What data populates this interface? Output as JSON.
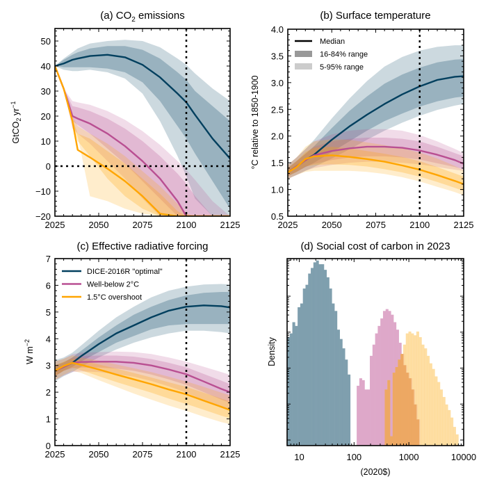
{
  "colors": {
    "dice": "#013f5e",
    "wb2": "#b94f92",
    "os15": "#ffa500",
    "dice_hist": "#7f9fae",
    "wb2_hist": "#dea8c9",
    "os15_hist": "#fdd17f",
    "overlap_hist": "#eda863"
  },
  "chart_data": [
    {
      "id": "a",
      "type": "line",
      "title": "(a) CO",
      "title_sub": "2",
      "title_suffix": " emissions",
      "xlabel": "",
      "ylabel": "GtCO",
      "ylabel_sub": "2",
      "ylabel_suffix": " yr",
      "ylabel_sup": "−1",
      "xlim": [
        2025,
        2125
      ],
      "ylim": [
        -20,
        55
      ],
      "xticks": [
        2025,
        2050,
        2075,
        2100,
        2125
      ],
      "yticks": [
        -20,
        -10,
        0,
        10,
        20,
        30,
        40,
        50
      ],
      "ytick_labels": [
        "−20",
        "−10",
        "0",
        "10",
        "20",
        "30",
        "40",
        "50"
      ],
      "vline": 2100,
      "hline": 0,
      "x": [
        2025,
        2030,
        2035,
        2038,
        2045,
        2055,
        2065,
        2075,
        2085,
        2095,
        2100,
        2105,
        2115,
        2125
      ],
      "series": [
        {
          "name": "DICE-2016R \"optimal\"",
          "key": "dice",
          "median": [
            40,
            41,
            42.5,
            43,
            44,
            44.5,
            43.5,
            40.5,
            35.5,
            29,
            25.5,
            20.5,
            11,
            3
          ],
          "p16": [
            40,
            39.5,
            39.5,
            39.5,
            39.5,
            39,
            37.5,
            33.5,
            26,
            16,
            11,
            5,
            -6,
            -17
          ],
          "p84": [
            40,
            42.5,
            44.5,
            45.5,
            47,
            48,
            48,
            46.5,
            43,
            37.5,
            34.5,
            30,
            24,
            18
          ],
          "p5": [
            40,
            38.5,
            38,
            38,
            38.5,
            37.5,
            35,
            29,
            18,
            4,
            -4,
            -13,
            -20,
            -20
          ],
          "p95": [
            40,
            43,
            45.5,
            47,
            49,
            50,
            50.5,
            50,
            47.5,
            43,
            40.5,
            37,
            31,
            26
          ]
        },
        {
          "name": "Well-below 2°C",
          "key": "wb2",
          "median": [
            40,
            31,
            20,
            19,
            17,
            13,
            8,
            2,
            -5,
            -14,
            -20,
            -20,
            -20,
            -20
          ],
          "p16": [
            40,
            31,
            18,
            16.5,
            13,
            7,
            1,
            -6,
            -13,
            -20,
            -20,
            -20,
            -20,
            -20
          ],
          "p84": [
            40,
            31,
            24,
            23.5,
            22,
            19,
            15,
            10,
            4,
            -3,
            -7,
            -12,
            -20,
            -20
          ],
          "p5": [
            40,
            31,
            15,
            13,
            9,
            2,
            -5,
            -13,
            -20,
            -20,
            -20,
            -20,
            -20,
            -20
          ],
          "p95": [
            40,
            31,
            26,
            25.5,
            24.5,
            22,
            18.5,
            14,
            8.5,
            2,
            -1.5,
            -5.5,
            -14,
            -20
          ]
        },
        {
          "name": "1.5°C overshoot",
          "key": "os15",
          "median": [
            40,
            31,
            18,
            6.5,
            3.5,
            -1,
            -6,
            -12,
            -19,
            -20,
            -20,
            -20,
            -20,
            -20
          ],
          "p16": [
            40,
            31,
            17,
            10,
            4,
            -5,
            -12,
            -17,
            -20,
            -20,
            -20,
            -20,
            -20,
            -20
          ],
          "p84": [
            40,
            31,
            19,
            13,
            11,
            6,
            1,
            -5,
            -11,
            -18,
            -20,
            -20,
            -20,
            -20
          ],
          "p5": [
            40,
            31,
            17,
            12,
            -12,
            -14,
            -17,
            -19,
            -20,
            -20,
            -20,
            -20,
            -20,
            -20
          ],
          "p95": [
            40,
            31,
            20,
            16,
            13,
            9,
            4,
            -2,
            -8,
            -15,
            -19,
            -20,
            -20,
            -20
          ]
        }
      ]
    },
    {
      "id": "b",
      "type": "line",
      "title": "(b) Surface temperature",
      "ylabel": "°C relative to 1850-1900",
      "xlim": [
        2025,
        2125
      ],
      "ylim": [
        0.5,
        4.0
      ],
      "xticks": [
        2025,
        2050,
        2075,
        2100,
        2125
      ],
      "yticks": [
        0.5,
        1.0,
        1.5,
        2.0,
        2.5,
        3.0,
        3.5,
        4.0
      ],
      "ytick_labels": [
        "0.5",
        "1.0",
        "1.5",
        "2.0",
        "2.5",
        "3.0",
        "3.5",
        "4.0"
      ],
      "vline": 2100,
      "legend": {
        "position": "top-left",
        "items": [
          "Median",
          "16-84% range",
          "5-95% range"
        ]
      },
      "x": [
        2025,
        2030,
        2035,
        2040,
        2050,
        2060,
        2070,
        2080,
        2090,
        2100,
        2110,
        2120,
        2125
      ],
      "series": [
        {
          "key": "dice",
          "median": [
            1.32,
            1.43,
            1.55,
            1.65,
            1.93,
            2.18,
            2.4,
            2.6,
            2.78,
            2.93,
            3.05,
            3.11,
            3.12
          ],
          "p16": [
            1.25,
            1.33,
            1.42,
            1.5,
            1.7,
            1.9,
            2.1,
            2.28,
            2.42,
            2.55,
            2.65,
            2.72,
            2.74
          ],
          "p84": [
            1.4,
            1.53,
            1.67,
            1.81,
            2.15,
            2.47,
            2.74,
            2.98,
            3.15,
            3.28,
            3.38,
            3.43,
            3.44
          ],
          "p5": [
            1.2,
            1.27,
            1.35,
            1.42,
            1.58,
            1.75,
            1.93,
            2.1,
            2.25,
            2.38,
            2.49,
            2.57,
            2.6
          ],
          "p95": [
            1.46,
            1.6,
            1.76,
            1.93,
            2.33,
            2.7,
            3.03,
            3.3,
            3.48,
            3.6,
            3.67,
            3.7,
            3.7
          ]
        },
        {
          "key": "wb2",
          "median": [
            1.32,
            1.43,
            1.55,
            1.64,
            1.72,
            1.77,
            1.8,
            1.8,
            1.78,
            1.73,
            1.65,
            1.55,
            1.48
          ],
          "p16": [
            1.25,
            1.33,
            1.42,
            1.48,
            1.55,
            1.6,
            1.62,
            1.62,
            1.6,
            1.56,
            1.49,
            1.42,
            1.38
          ],
          "p84": [
            1.4,
            1.53,
            1.66,
            1.8,
            1.9,
            1.95,
            1.97,
            1.97,
            1.95,
            1.9,
            1.8,
            1.68,
            1.62
          ],
          "p5": [
            1.2,
            1.27,
            1.35,
            1.4,
            1.46,
            1.5,
            1.52,
            1.52,
            1.5,
            1.47,
            1.42,
            1.37,
            1.35
          ],
          "p95": [
            1.46,
            1.6,
            1.75,
            1.9,
            2.03,
            2.1,
            2.13,
            2.13,
            2.1,
            2.02,
            1.9,
            1.76,
            1.68
          ]
        },
        {
          "key": "os15",
          "median": [
            1.32,
            1.42,
            1.57,
            1.62,
            1.64,
            1.61,
            1.57,
            1.52,
            1.45,
            1.37,
            1.27,
            1.16,
            1.1
          ],
          "p16": [
            1.25,
            1.33,
            1.43,
            1.46,
            1.47,
            1.46,
            1.43,
            1.38,
            1.32,
            1.24,
            1.14,
            1.03,
            0.97
          ],
          "p84": [
            1.4,
            1.53,
            1.7,
            1.78,
            1.8,
            1.77,
            1.72,
            1.67,
            1.61,
            1.53,
            1.42,
            1.3,
            1.24
          ],
          "p5": [
            1.2,
            1.27,
            1.33,
            1.35,
            1.35,
            1.35,
            1.33,
            1.29,
            1.23,
            1.15,
            1.05,
            0.95,
            0.89
          ],
          "p95": [
            1.46,
            1.6,
            1.8,
            1.9,
            1.94,
            1.93,
            1.88,
            1.83,
            1.77,
            1.69,
            1.58,
            1.44,
            1.36
          ]
        }
      ]
    },
    {
      "id": "c",
      "type": "line",
      "title": "(c) Effective radiative forcing",
      "ylabel": "W m",
      "ylabel_sup": "−2",
      "xlim": [
        2025,
        2125
      ],
      "ylim": [
        0,
        7
      ],
      "xticks": [
        2025,
        2050,
        2075,
        2100,
        2125
      ],
      "yticks": [
        0,
        1,
        2,
        3,
        4,
        5,
        6,
        7
      ],
      "ytick_labels": [
        "0",
        "1",
        "2",
        "3",
        "4",
        "5",
        "6",
        "7"
      ],
      "vline": 2100,
      "legend": {
        "position": "top-left",
        "items": [
          "DICE-2016R \"optimal\"",
          "Well-below 2°C",
          "1.5°C overshoot"
        ]
      },
      "x": [
        2025,
        2030,
        2035,
        2040,
        2050,
        2060,
        2070,
        2080,
        2090,
        2100,
        2110,
        2120,
        2125
      ],
      "series": [
        {
          "key": "dice",
          "median": [
            2.8,
            2.95,
            3.1,
            3.35,
            3.8,
            4.2,
            4.5,
            4.8,
            5.05,
            5.2,
            5.25,
            5.22,
            5.17
          ],
          "p16": [
            2.6,
            2.8,
            2.95,
            3.15,
            3.5,
            3.85,
            4.1,
            4.35,
            4.5,
            4.55,
            4.55,
            4.55,
            4.55
          ],
          "p84": [
            3.0,
            3.12,
            3.3,
            3.55,
            4.05,
            4.5,
            4.9,
            5.2,
            5.45,
            5.62,
            5.72,
            5.75,
            5.75
          ],
          "p5": [
            2.4,
            2.6,
            2.75,
            2.95,
            3.3,
            3.6,
            3.85,
            4.05,
            4.2,
            4.3,
            4.3,
            4.25,
            4.2
          ],
          "p95": [
            3.2,
            3.3,
            3.48,
            3.75,
            4.3,
            4.8,
            5.2,
            5.55,
            5.8,
            5.95,
            6.03,
            6.05,
            6.03
          ]
        },
        {
          "key": "wb2",
          "median": [
            2.8,
            2.95,
            3.1,
            3.13,
            3.14,
            3.14,
            3.1,
            3.0,
            2.85,
            2.67,
            2.4,
            2.12,
            2.0
          ],
          "p16": [
            2.6,
            2.8,
            2.9,
            2.92,
            2.92,
            2.88,
            2.8,
            2.66,
            2.48,
            2.27,
            2.0,
            1.72,
            1.6
          ],
          "p84": [
            3.0,
            3.1,
            3.3,
            3.35,
            3.37,
            3.37,
            3.33,
            3.24,
            3.1,
            2.93,
            2.68,
            2.43,
            2.3
          ],
          "p5": [
            2.45,
            2.62,
            2.75,
            2.78,
            2.75,
            2.68,
            2.58,
            2.42,
            2.22,
            1.98,
            1.7,
            1.42,
            1.3
          ],
          "p95": [
            3.15,
            3.25,
            3.42,
            3.48,
            3.5,
            3.52,
            3.5,
            3.43,
            3.3,
            3.14,
            2.95,
            2.75,
            2.65
          ]
        },
        {
          "key": "os15",
          "median": [
            2.8,
            2.98,
            3.1,
            3.02,
            2.85,
            2.66,
            2.48,
            2.3,
            2.1,
            1.92,
            1.68,
            1.45,
            1.33
          ],
          "p16": [
            2.6,
            2.8,
            2.92,
            2.82,
            2.6,
            2.38,
            2.18,
            1.98,
            1.76,
            1.56,
            1.34,
            1.12,
            1.02
          ],
          "p84": [
            3.0,
            3.14,
            3.25,
            3.18,
            3.04,
            2.88,
            2.72,
            2.55,
            2.37,
            2.2,
            1.98,
            1.76,
            1.65
          ],
          "p5": [
            2.45,
            2.65,
            2.8,
            2.72,
            2.45,
            2.2,
            1.95,
            1.72,
            1.5,
            1.3,
            1.08,
            0.88,
            0.8
          ],
          "p95": [
            3.15,
            3.25,
            3.38,
            3.3,
            3.18,
            3.04,
            2.9,
            2.75,
            2.58,
            2.4,
            2.2,
            1.98,
            1.88
          ]
        }
      ]
    },
    {
      "id": "d",
      "type": "bar",
      "title": "(d) Social cost of carbon in 2023",
      "xlabel": "(2020$)",
      "ylabel": "Density",
      "xscale": "log",
      "xlim": [
        6,
        10000
      ],
      "yscale": "log",
      "xticks": [
        10,
        100,
        1000,
        10000
      ],
      "xtick_labels": [
        "10",
        "100",
        "1000",
        "10000"
      ],
      "histograms": [
        {
          "key": "dice_hist",
          "log_bin_start": 0.778,
          "log_bin_width": 0.048,
          "heights": [
            0.58,
            0.6,
            0.66,
            0.64,
            0.74,
            0.76,
            0.84,
            0.86,
            0.92,
            0.95,
            0.98,
            0.99,
            0.97,
            0.97,
            0.94,
            0.9,
            0.84,
            0.76,
            0.72,
            0.62,
            0.57,
            0.52,
            0.46,
            0.38
          ]
        },
        {
          "key": "wb2_hist",
          "log_bin_start": 2.048,
          "log_bin_width": 0.048,
          "heights": [
            0.32,
            0.36,
            0.35,
            0.3,
            0.3,
            0.48,
            0.54,
            0.6,
            0.64,
            0.68,
            0.72,
            0.73,
            0.72,
            0.7,
            0.66,
            0.62,
            0.55,
            0.49,
            0.43,
            0.39,
            0.36,
            0.3,
            0.22,
            0.14
          ]
        },
        {
          "key": "os15_hist",
          "log_bin_start": 2.56,
          "log_bin_width": 0.048,
          "heights": [
            0.3,
            0.35,
            0.05,
            0.39,
            0.42,
            0.46,
            0.49,
            0.54,
            0.6,
            0.61,
            0.6,
            0.59,
            0.61,
            0.58,
            0.54,
            0.52,
            0.48,
            0.44,
            0.41,
            0.37,
            0.34,
            0.3,
            0.26,
            0.22,
            0.19,
            0.15,
            0.1,
            0.06
          ]
        }
      ]
    }
  ]
}
